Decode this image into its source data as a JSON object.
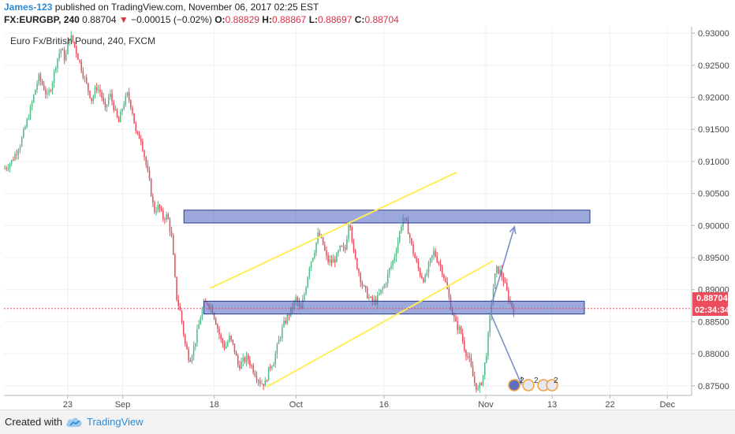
{
  "header": {
    "author": "James-123",
    "published": " published on TradingView.com, November 06, 2017 02:25 EST",
    "symbol": "FX:EURGBP, 240",
    "last": "0.88704",
    "arrow": "▼",
    "change": "−0.00015 (−0.02%)",
    "o_label": "O:",
    "o_value": "0.88829",
    "h_label": "H:",
    "h_value": "0.88867",
    "l_label": "L:",
    "l_value": "0.88697",
    "c_label": "C:",
    "c_value": "0.88704"
  },
  "chart_data": {
    "type": "candlestick",
    "title": "Euro Fx/British Pound, 240, FXCM",
    "ylim": [
      0.8735,
      0.931
    ],
    "yticks": [
      "0.93000",
      "0.92500",
      "0.92000",
      "0.91500",
      "0.91000",
      "0.90500",
      "0.90000",
      "0.89500",
      "0.89000",
      "0.88500",
      "0.88000",
      "0.87500"
    ],
    "xticks": [
      "23",
      "Sep",
      "18",
      "Oct",
      "16",
      "Nov",
      "13",
      "22",
      "Dec"
    ],
    "last_price_label": "0.88704",
    "countdown_label": "02:34:34",
    "colors": {
      "up": "#53b987",
      "down": "#eb4d5c",
      "zone": "#5b6fc4",
      "channel": "#ffee58",
      "arrow": "#7b8fc8"
    },
    "price_path": [
      [
        0.9088,
        0.9093,
        0.9101,
        0.9115,
        0.913,
        0.9154,
        0.9177,
        0.9205,
        0.9231,
        0.9218,
        0.92,
        0.9222,
        0.9256,
        0.9276,
        0.9258,
        0.9298,
        0.9282,
        0.926,
        0.9237,
        0.9215,
        0.9195,
        0.9217,
        0.9207,
        0.9179,
        0.9206,
        0.9183,
        0.9159,
        0.9188,
        0.9204,
        0.9184,
        0.914,
        0.9138,
        0.9102,
        0.9066,
        0.9022,
        0.903,
        0.9012,
        0.9015,
        0.898,
        0.889,
        0.8862,
        0.8815,
        0.879,
        0.8811,
        0.8842,
        0.8874,
        0.888,
        0.8872,
        0.8848,
        0.8822,
        0.8809,
        0.8825,
        0.8809,
        0.878,
        0.8788,
        0.8794,
        0.878,
        0.8766,
        0.8755,
        0.8753,
        0.8779,
        0.8789,
        0.8818,
        0.8842,
        0.8857,
        0.887,
        0.8887,
        0.8865,
        0.8898,
        0.8938,
        0.8958,
        0.8987,
        0.8972,
        0.8945,
        0.8943,
        0.8949,
        0.8965,
        0.896,
        0.9015,
        0.8954,
        0.893,
        0.8905,
        0.8892,
        0.8881,
        0.8882,
        0.8896,
        0.8908,
        0.8931,
        0.8948,
        0.8978,
        0.9012,
        0.9,
        0.8968,
        0.8943,
        0.8923,
        0.8915,
        0.894,
        0.8959,
        0.8944,
        0.8928,
        0.8901,
        0.8868,
        0.8845,
        0.8836,
        0.8806,
        0.879,
        0.8758,
        0.8742,
        0.8762,
        0.8808,
        0.8882,
        0.8932,
        0.8928,
        0.8908,
        0.8883,
        0.887
      ]
    ],
    "zones": [
      {
        "from": "Sep 14",
        "to": "Nov 17",
        "low": 0.9004,
        "high": 0.9024
      },
      {
        "from": "Sep 14",
        "to": "Nov 16",
        "low": 0.8862,
        "high": 0.8882
      }
    ],
    "channel_lines": [
      {
        "from": [
          0.2996,
          0.8902
        ],
        "to": [
          0.6583,
          0.9083
        ]
      },
      {
        "from": [
          0.3818,
          0.8748
        ],
        "to": [
          0.7115,
          0.8945
        ]
      }
    ],
    "arrows": [
      {
        "from": [
          0.7078,
          0.8872
        ],
        "to": [
          0.7423,
          0.8998
        ]
      },
      {
        "from": [
          0.7078,
          0.8863
        ],
        "to": [
          0.7522,
          0.8753
        ]
      }
    ],
    "grid": true,
    "last_price_line": 0.88704
  },
  "footer": {
    "created_with": "Created with",
    "brand": "TradingView"
  }
}
